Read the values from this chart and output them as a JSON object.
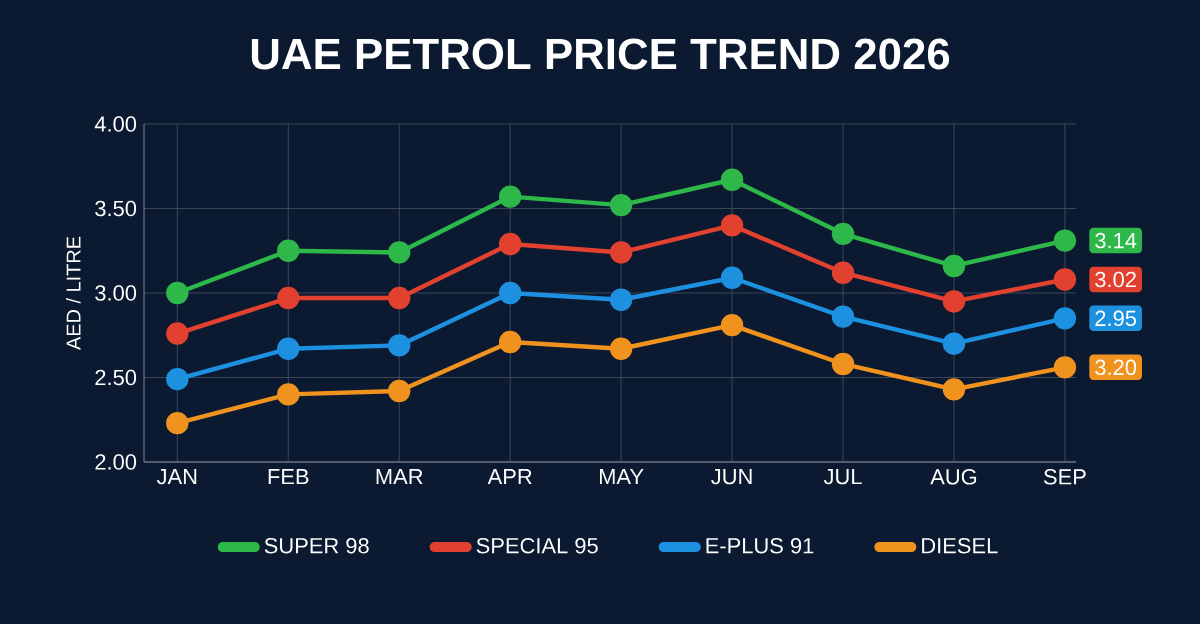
{
  "chart_data": {
    "type": "line",
    "title": "UAE PETROL PRICE TREND 2026",
    "ylabel": "AED / LITRE",
    "categories": [
      "JAN",
      "FEB",
      "MAR",
      "APR",
      "MAY",
      "JUN",
      "JUL",
      "AUG",
      "SEP"
    ],
    "series": [
      {
        "name": "SUPER 98",
        "color": "#2eb84a",
        "values": [
          3.0,
          3.25,
          3.24,
          3.57,
          3.52,
          3.67,
          3.35,
          3.16,
          3.31
        ]
      },
      {
        "name": "SPECIAL 95",
        "color": "#e2412f",
        "values": [
          2.76,
          2.97,
          2.97,
          3.29,
          3.24,
          3.4,
          3.12,
          2.95,
          3.08
        ]
      },
      {
        "name": "E-PLUS 91",
        "color": "#1e90e0",
        "values": [
          2.49,
          2.67,
          2.69,
          3.0,
          2.96,
          3.09,
          2.86,
          2.7,
          2.85
        ]
      },
      {
        "name": "DIESEL",
        "color": "#f0921e",
        "values": [
          2.23,
          2.4,
          2.42,
          2.71,
          2.67,
          2.81,
          2.58,
          2.43,
          2.56
        ]
      }
    ],
    "annotations": [
      "3.14",
      "3.02",
      "2.95",
      "3.20"
    ],
    "ylim": [
      2.0,
      4.0
    ],
    "yticks": [
      {
        "value": 2.0,
        "label": "2.00"
      },
      {
        "value": 2.5,
        "label": "2.50"
      },
      {
        "value": 3.0,
        "label": "3.00"
      },
      {
        "value": 3.5,
        "label": "3.50"
      },
      {
        "value": 4.0,
        "label": "4.00"
      }
    ],
    "grid": true,
    "legend": "bottom",
    "marker": "circle",
    "line_style": "solid"
  }
}
